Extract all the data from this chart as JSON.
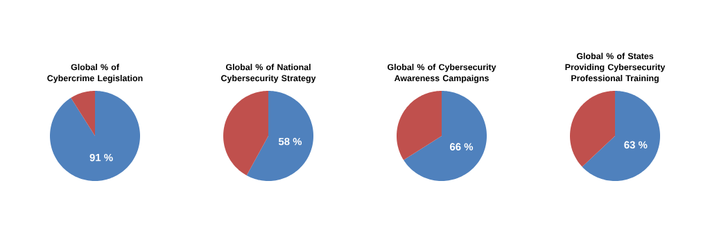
{
  "chart_data": [
    {
      "type": "pie",
      "title": "Global % of Cybercrime Legislation",
      "categories": [
        null,
        null
      ],
      "values": [
        91,
        9
      ],
      "colors": [
        "#4f81bd",
        "#c0504d"
      ],
      "value_labels": [
        "91 %",
        null
      ]
    },
    {
      "type": "pie",
      "title": "Global % of National Cybersecurity Strategy",
      "categories": [
        null,
        null
      ],
      "values": [
        58,
        42
      ],
      "colors": [
        "#4f81bd",
        "#c0504d"
      ],
      "value_labels": [
        "58 %",
        null
      ]
    },
    {
      "type": "pie",
      "title": "Global % of Cybersecurity Awareness Campaigns",
      "categories": [
        null,
        null
      ],
      "values": [
        66,
        34
      ],
      "colors": [
        "#4f81bd",
        "#c0504d"
      ],
      "value_labels": [
        "66 %",
        null
      ]
    },
    {
      "type": "pie",
      "title": "Global % of States Providing Cybersecurity Professional Training",
      "categories": [
        null,
        null
      ],
      "values": [
        63,
        37
      ],
      "colors": [
        "#4f81bd",
        "#c0504d"
      ],
      "value_labels": [
        "63 %",
        null
      ]
    }
  ]
}
